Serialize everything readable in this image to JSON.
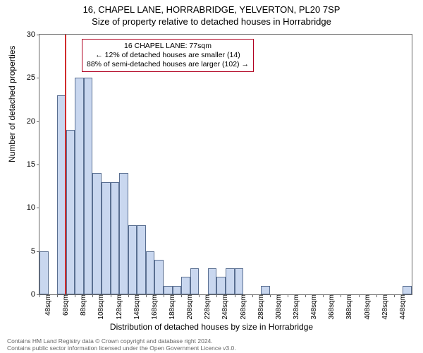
{
  "title": "16, CHAPEL LANE, HORRABRIDGE, YELVERTON, PL20 7SP",
  "subtitle": "Size of property relative to detached houses in Horrabridge",
  "chart": {
    "type": "histogram",
    "ylabel": "Number of detached properties",
    "xlabel": "Distribution of detached houses by size in Horrabridge",
    "ylim": [
      0,
      30
    ],
    "ytick_step": 5,
    "yticks": [
      0,
      5,
      10,
      15,
      20,
      25,
      30
    ],
    "xticks": [
      "48sqm",
      "68sqm",
      "88sqm",
      "108sqm",
      "128sqm",
      "148sqm",
      "168sqm",
      "188sqm",
      "208sqm",
      "228sqm",
      "248sqm",
      "268sqm",
      "288sqm",
      "308sqm",
      "328sqm",
      "348sqm",
      "368sqm",
      "388sqm",
      "408sqm",
      "428sqm",
      "448sqm"
    ],
    "x_start": 48,
    "x_end": 468,
    "bin_width": 10,
    "bars": [
      {
        "x": 48,
        "v": 5
      },
      {
        "x": 58,
        "v": 0
      },
      {
        "x": 68,
        "v": 23
      },
      {
        "x": 78,
        "v": 19
      },
      {
        "x": 88,
        "v": 25
      },
      {
        "x": 98,
        "v": 25
      },
      {
        "x": 108,
        "v": 14
      },
      {
        "x": 118,
        "v": 13
      },
      {
        "x": 128,
        "v": 13
      },
      {
        "x": 138,
        "v": 14
      },
      {
        "x": 148,
        "v": 8
      },
      {
        "x": 158,
        "v": 8
      },
      {
        "x": 168,
        "v": 5
      },
      {
        "x": 178,
        "v": 4
      },
      {
        "x": 188,
        "v": 1
      },
      {
        "x": 198,
        "v": 1
      },
      {
        "x": 208,
        "v": 2
      },
      {
        "x": 218,
        "v": 3
      },
      {
        "x": 228,
        "v": 0
      },
      {
        "x": 238,
        "v": 3
      },
      {
        "x": 248,
        "v": 2
      },
      {
        "x": 258,
        "v": 3
      },
      {
        "x": 268,
        "v": 3
      },
      {
        "x": 278,
        "v": 0
      },
      {
        "x": 288,
        "v": 0
      },
      {
        "x": 298,
        "v": 1
      },
      {
        "x": 308,
        "v": 0
      },
      {
        "x": 318,
        "v": 0
      },
      {
        "x": 328,
        "v": 0
      },
      {
        "x": 338,
        "v": 0
      },
      {
        "x": 348,
        "v": 0
      },
      {
        "x": 358,
        "v": 0
      },
      {
        "x": 368,
        "v": 0
      },
      {
        "x": 378,
        "v": 0
      },
      {
        "x": 388,
        "v": 0
      },
      {
        "x": 398,
        "v": 0
      },
      {
        "x": 408,
        "v": 0
      },
      {
        "x": 418,
        "v": 0
      },
      {
        "x": 428,
        "v": 0
      },
      {
        "x": 438,
        "v": 0
      },
      {
        "x": 448,
        "v": 0
      },
      {
        "x": 458,
        "v": 1
      }
    ],
    "bar_color": "#c9d7ef",
    "bar_border": "#5a6f91",
    "background_color": "#ffffff",
    "axis_color": "#666666",
    "marker": {
      "x": 77,
      "color": "#d12c2c"
    },
    "annotation": {
      "lines": [
        "16 CHAPEL LANE: 77sqm",
        "← 12% of detached houses are smaller (14)",
        "88% of semi-detached houses are larger (102) →"
      ],
      "border_color": "#b00020"
    }
  },
  "footer": {
    "line1": "Contains HM Land Registry data © Crown copyright and database right 2024.",
    "line2": "Contains public sector information licensed under the Open Government Licence v3.0."
  },
  "fonts": {
    "title": 13,
    "subtitle": 13,
    "axis_label": 12,
    "tick": 11,
    "xtick": 10,
    "annotation": 10.5,
    "footer": 8.5
  }
}
